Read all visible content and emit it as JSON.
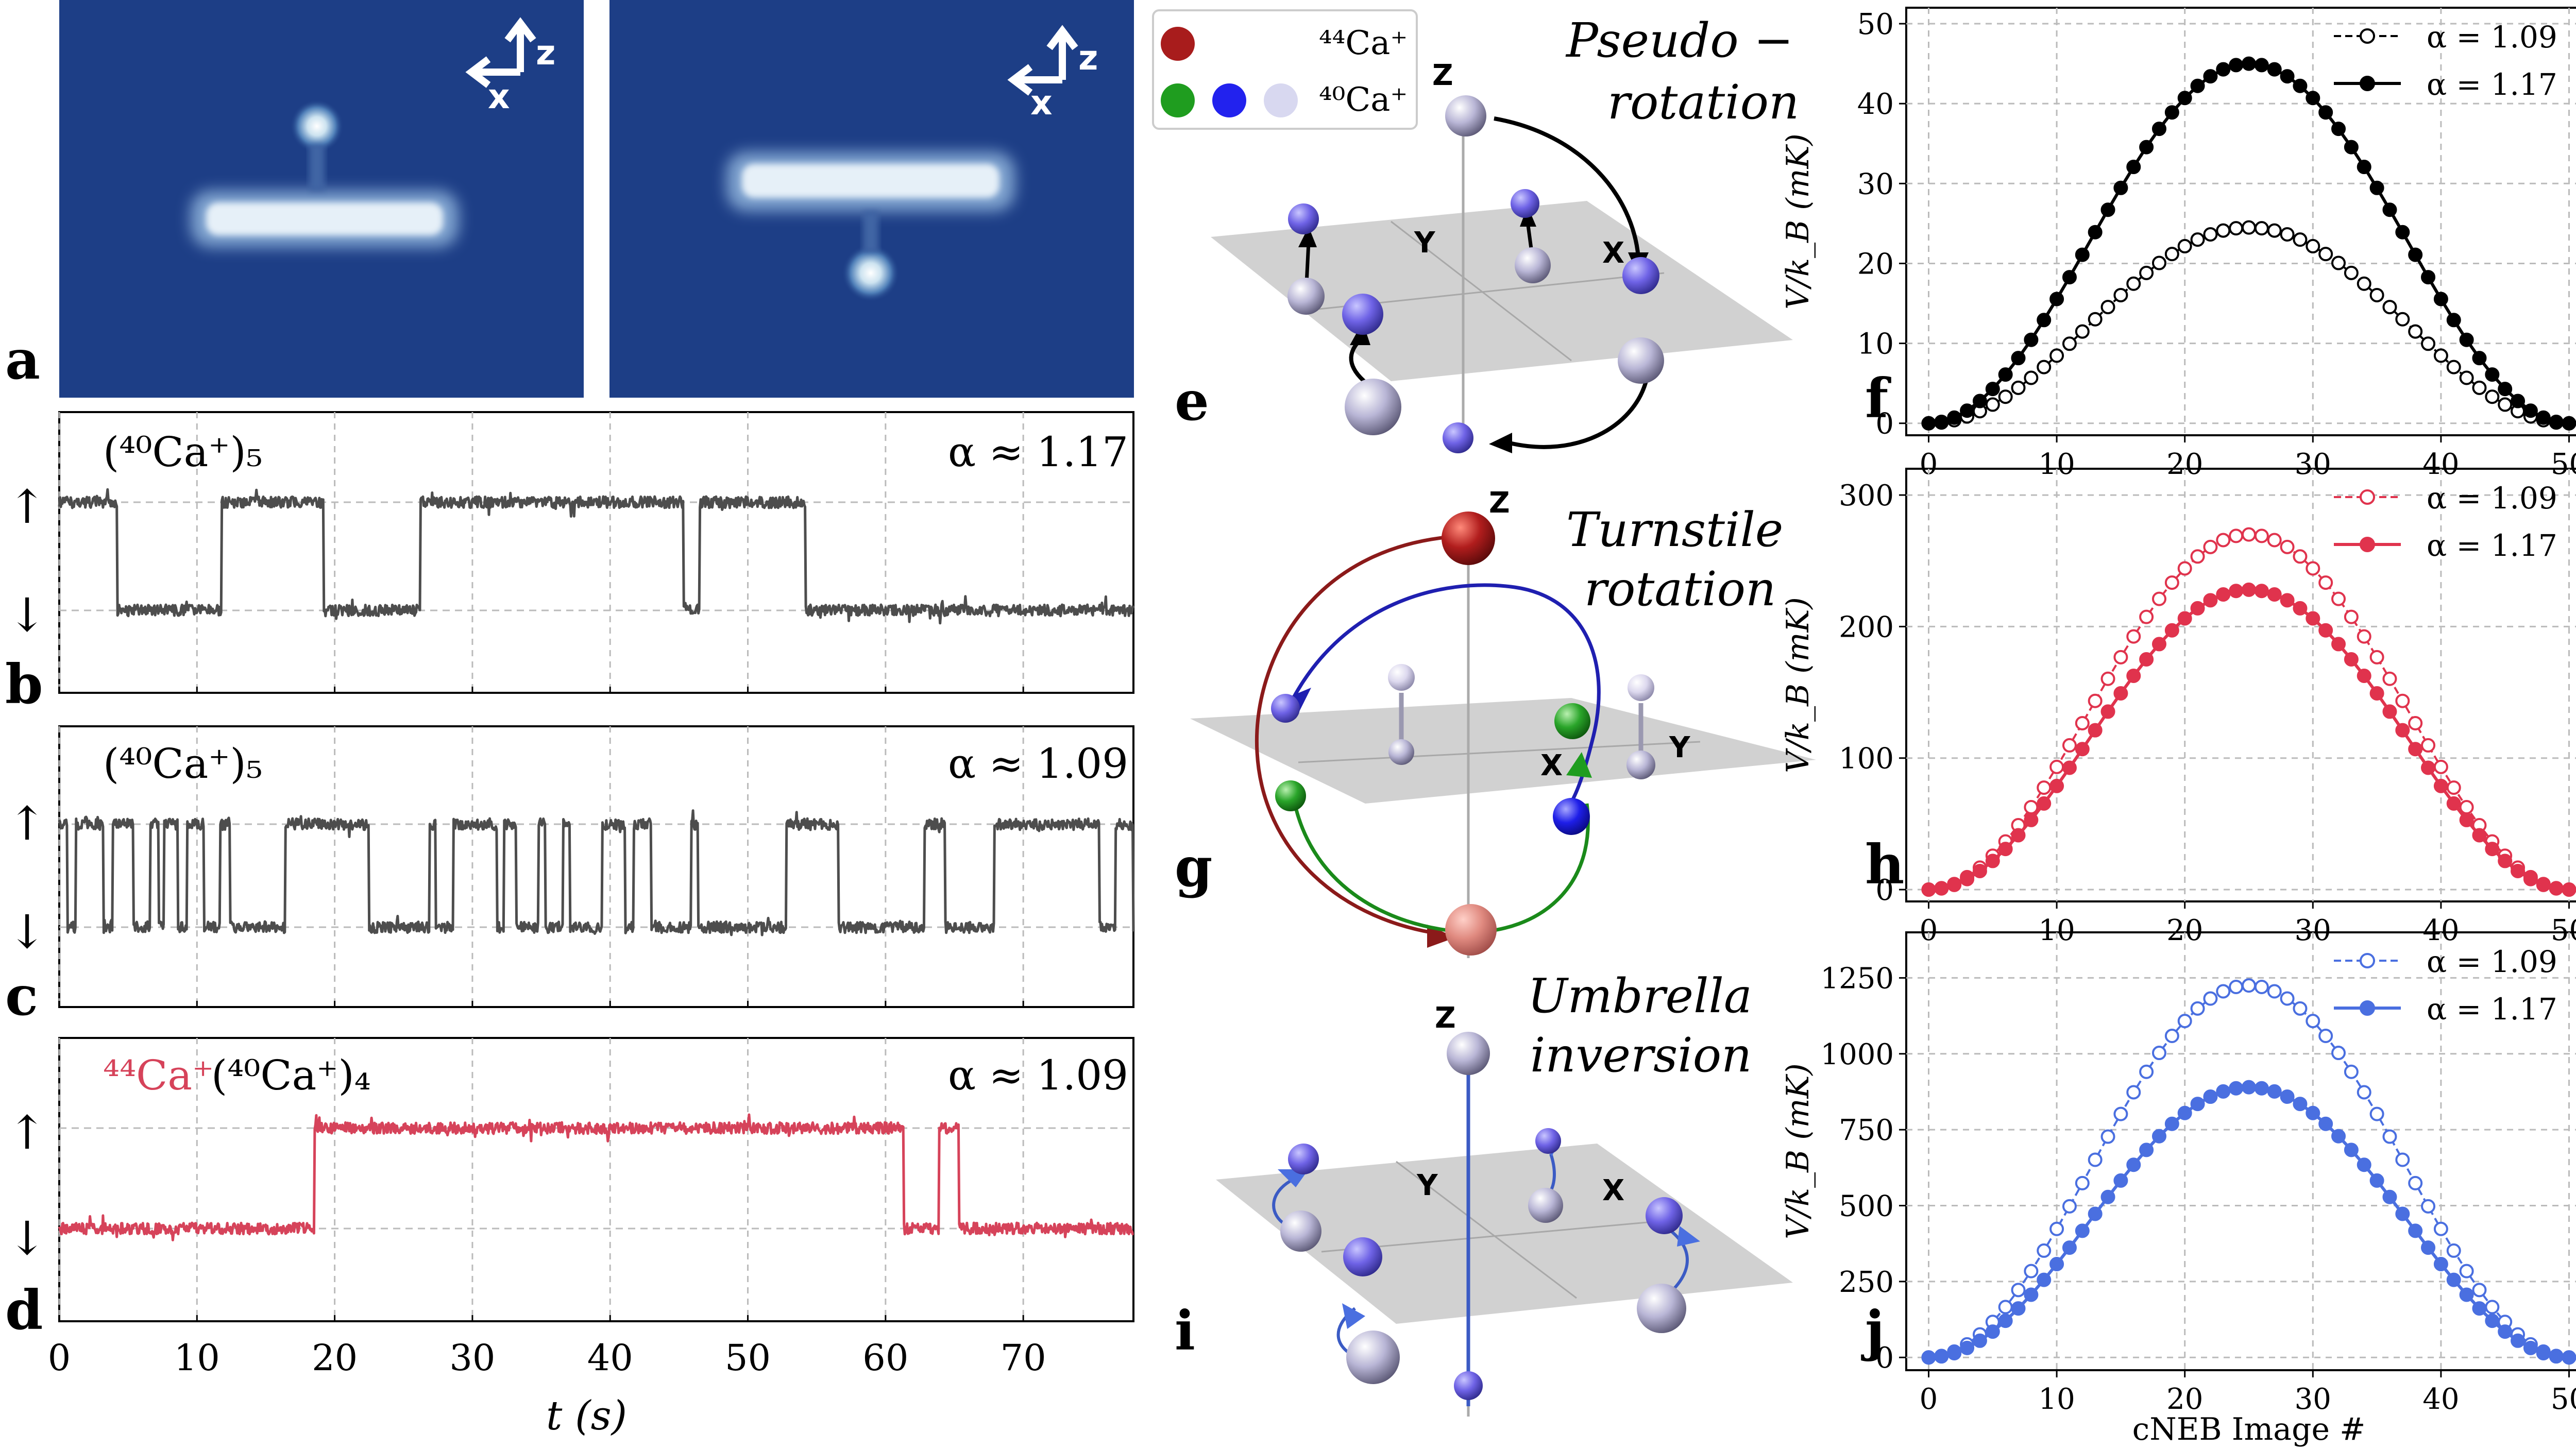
{
  "panel_letters": {
    "a": "a",
    "b": "b",
    "c": "c",
    "d": "d",
    "e": "e",
    "f": "f",
    "g": "g",
    "h": "h",
    "i": "i",
    "j": "j"
  },
  "panel_a": {
    "axis_z": "z",
    "axis_x": "x"
  },
  "panel_b": {
    "label": "(⁴⁰Ca⁺)₅",
    "alpha": "α ≈ 1.17",
    "up": "↑",
    "down": "↓"
  },
  "panel_c": {
    "label": "(⁴⁰Ca⁺)₅",
    "alpha": "α ≈ 1.09",
    "up": "↑",
    "down": "↓"
  },
  "panel_d": {
    "label_44": "⁴⁴Ca⁺",
    "label_40": "(⁴⁰Ca⁺)₄",
    "alpha": "α ≈ 1.09",
    "up": "↑",
    "down": "↓"
  },
  "time_axis": {
    "ticks": [
      "0",
      "10",
      "20",
      "30",
      "40",
      "50",
      "60",
      "70"
    ],
    "xlabel": "t (s)"
  },
  "legend_species": {
    "ca44": "⁴⁴Ca⁺",
    "ca40": "⁴⁰Ca⁺"
  },
  "panel_e": {
    "title_line1": "Pseudo −",
    "title_line2": "rotation",
    "z": "Z",
    "x": "X",
    "y": "Y"
  },
  "panel_g": {
    "title_line1": "Turnstile",
    "title_line2": "rotation",
    "z": "Z",
    "x": "X",
    "y": "Y"
  },
  "panel_i": {
    "title_line1": "Umbrella",
    "title_line2": "inversion",
    "z": "Z",
    "x": "X",
    "y": "Y"
  },
  "colors": {
    "trace_gray": "#4d4d4d",
    "trace_red": "#d6435a",
    "f_series": "#000000",
    "h_series": "#e0334d",
    "j_series": "#4a6fe0",
    "image_bg": "#1d3e86",
    "ca44": "#a81c1c",
    "ca40_green": "#1f9d1f",
    "ca40_blue": "#2222ee",
    "ca40_light": "#d8d8f0"
  },
  "chart_data": [
    {
      "type": "line",
      "panel": "f",
      "title": "",
      "xlabel": "",
      "ylabel": "V/k_B (mK)",
      "xlim": [
        0,
        50
      ],
      "ylim": [
        0,
        50
      ],
      "x_ticks": [
        "0",
        "10",
        "20",
        "30",
        "40",
        "50"
      ],
      "y_ticks": [
        "0",
        "10",
        "20",
        "30",
        "40",
        "50"
      ],
      "legend_position": "top-right",
      "grid": true,
      "peak_x": 24.5,
      "n_images": 51,
      "series": [
        {
          "name": "α = 1.09",
          "peak": 24.5,
          "style": "dashed-open"
        },
        {
          "name": "α = 1.17",
          "peak": 45,
          "style": "solid-filled"
        }
      ]
    },
    {
      "type": "line",
      "panel": "h",
      "title": "",
      "xlabel": "",
      "ylabel": "V/k_B (mK)",
      "xlim": [
        0,
        50
      ],
      "ylim": [
        0,
        300
      ],
      "x_ticks": [
        "0",
        "10",
        "20",
        "30",
        "40",
        "50"
      ],
      "y_ticks": [
        "0",
        "100",
        "200",
        "300"
      ],
      "legend_position": "top-right",
      "grid": true,
      "peak_x": 24.5,
      "n_images": 51,
      "series": [
        {
          "name": "α = 1.09",
          "peak": 270,
          "style": "dashed-open"
        },
        {
          "name": "α = 1.17",
          "peak": 228,
          "style": "solid-filled"
        }
      ]
    },
    {
      "type": "line",
      "panel": "j",
      "title": "",
      "xlabel": "cNEB Image #",
      "ylabel": "V/k_B (mK)",
      "xlim": [
        0,
        50
      ],
      "ylim": [
        0,
        1400
      ],
      "x_ticks": [
        "0",
        "10",
        "20",
        "30",
        "40",
        "50"
      ],
      "y_ticks": [
        "0",
        "250",
        "500",
        "750",
        "1000",
        "1250"
      ],
      "legend_position": "top-right",
      "grid": true,
      "peak_x": 24.5,
      "n_images": 51,
      "series": [
        {
          "name": "α = 1.09",
          "peak": 1225,
          "style": "dashed-open"
        },
        {
          "name": "α = 1.17",
          "peak": 890,
          "style": "solid-filled"
        }
      ]
    },
    {
      "type": "line",
      "panel": "b",
      "xlim": [
        0,
        78
      ],
      "levels": [
        "down",
        "up"
      ],
      "transitions": [
        4.2,
        11.8,
        19.2,
        26.2,
        45.3,
        46.5,
        54.2
      ],
      "initial_state": "up"
    },
    {
      "type": "line",
      "panel": "c",
      "xlim": [
        0,
        78
      ],
      "levels": [
        "down",
        "up"
      ],
      "transitions": [
        0.6,
        1.2,
        3.2,
        3.9,
        5.4,
        6.6,
        7.2,
        7.6,
        8.6,
        9.3,
        10.5,
        11.7,
        12.4,
        16.4,
        22.5,
        26.9,
        27.3,
        28.6,
        31.8,
        32.3,
        33.2,
        34.8,
        35.3,
        36.6,
        37.1,
        39.4,
        41.1,
        41.7,
        43.0,
        45.9,
        46.4,
        52.8,
        56.6,
        62.8,
        64.3,
        67.9,
        75.5,
        76.7,
        78.0
      ],
      "initial_state": "up"
    },
    {
      "type": "line",
      "panel": "d",
      "xlim": [
        0,
        78
      ],
      "levels": [
        "down",
        "up"
      ],
      "transitions": [
        18.5,
        61.3,
        63.9,
        65.3
      ],
      "initial_state": "down"
    }
  ]
}
